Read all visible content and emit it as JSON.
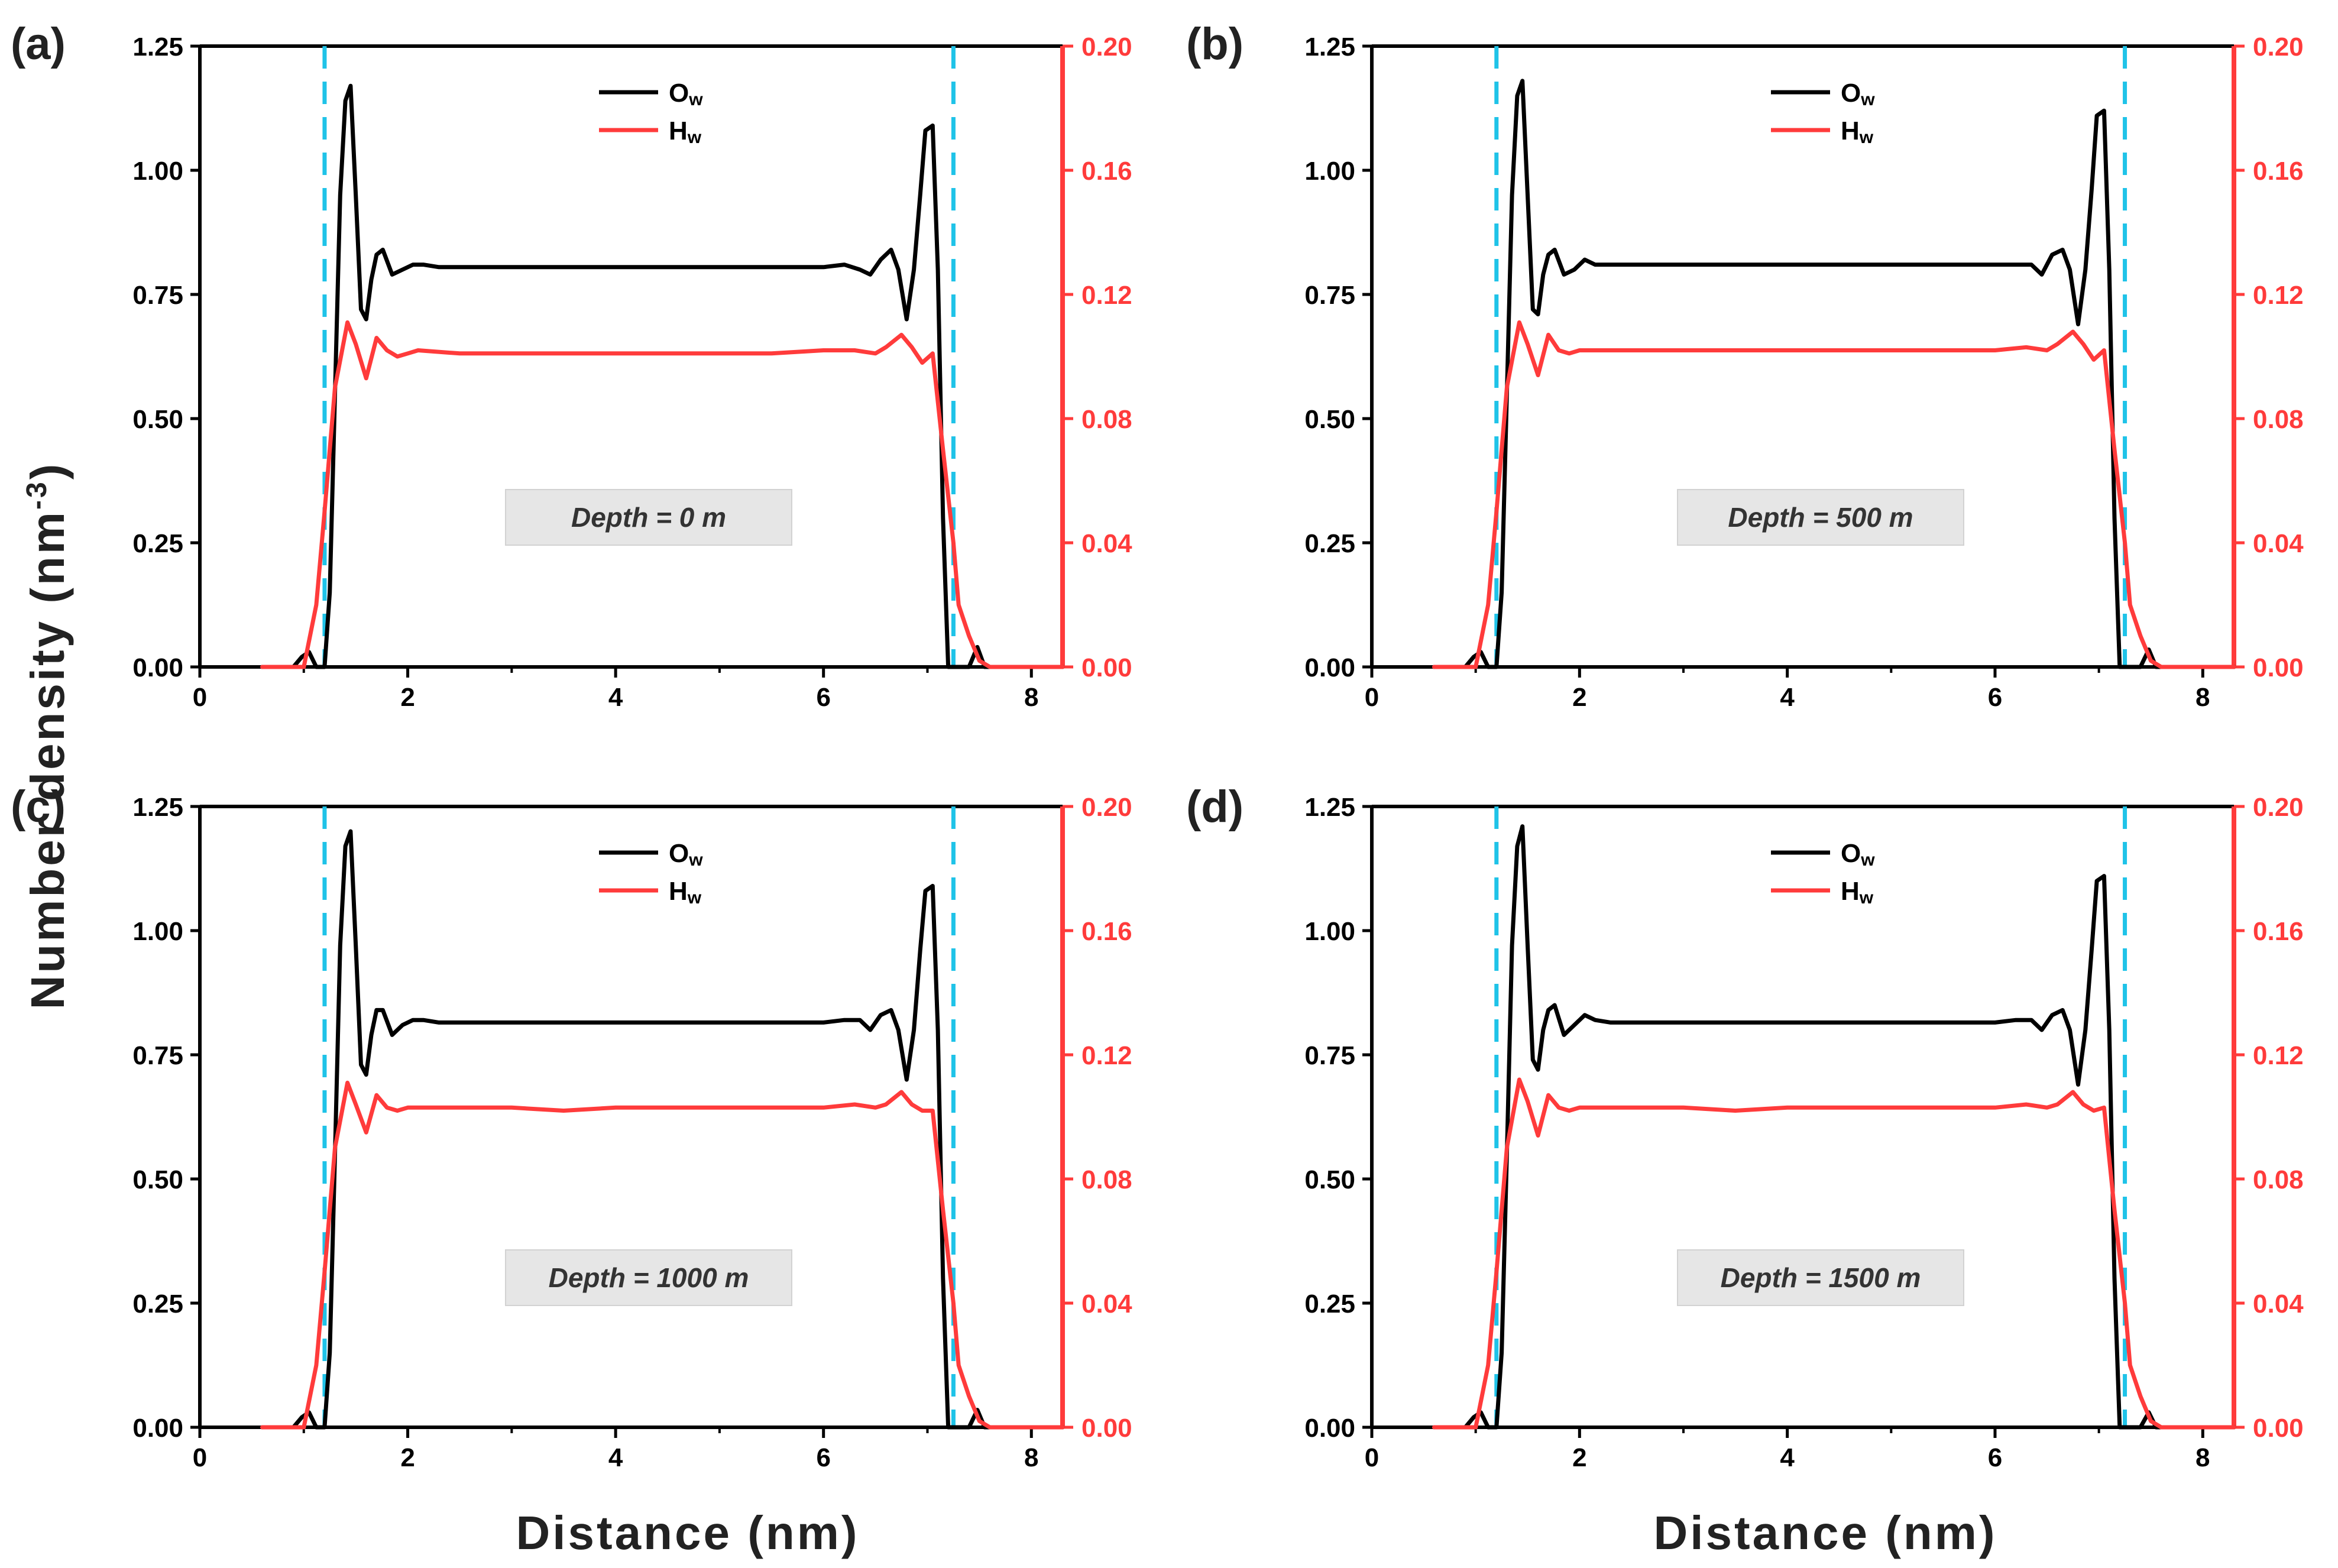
{
  "colors": {
    "ow": "#000000",
    "hw": "#ff3b3b",
    "dashed": "#1fc3e8",
    "axis": "#000000",
    "right_axis": "#ff3b3b",
    "depth_box": "#e6e6e6"
  },
  "figure": {
    "xlabel": "Distance (nm)",
    "ylabel_left": "Number density (nm",
    "ylabel_sup": "-3",
    "ylabel_close": ")"
  },
  "chart_data": [
    {
      "type": "line",
      "panel": "(a)",
      "annotation": "Depth = 0 m",
      "xlim": [
        0,
        8.3
      ],
      "ylim_left": [
        0,
        1.25
      ],
      "ylim_right": [
        0,
        0.2
      ],
      "xticks": [
        "0",
        "2",
        "4",
        "6",
        "8"
      ],
      "yticks_left": [
        "0.00",
        "0.25",
        "0.50",
        "0.75",
        "1.00",
        "1.25"
      ],
      "yticks_right": [
        "0.00",
        "0.04",
        "0.08",
        "0.12",
        "0.16",
        "0.20"
      ],
      "interfaces_x": [
        1.2,
        7.25
      ],
      "legend": [
        {
          "main": "O",
          "sub": "w"
        },
        {
          "main": "H",
          "sub": "w"
        }
      ],
      "series": [
        {
          "name": "Ow",
          "axis": "left",
          "x": [
            0.6,
            0.9,
            0.98,
            1.05,
            1.12,
            1.2,
            1.25,
            1.3,
            1.35,
            1.4,
            1.45,
            1.5,
            1.55,
            1.6,
            1.65,
            1.7,
            1.76,
            1.85,
            1.95,
            2.05,
            2.15,
            2.3,
            2.5,
            3.0,
            3.5,
            4.0,
            4.5,
            5.0,
            5.5,
            6.0,
            6.2,
            6.35,
            6.45,
            6.55,
            6.65,
            6.72,
            6.8,
            6.87,
            6.93,
            6.98,
            7.05,
            7.1,
            7.15,
            7.2,
            7.25,
            7.3,
            7.4,
            7.48,
            7.55,
            7.7,
            8.3
          ],
          "y": [
            0,
            0,
            0.02,
            0.03,
            0,
            0,
            0.15,
            0.55,
            0.95,
            1.14,
            1.17,
            0.95,
            0.72,
            0.7,
            0.78,
            0.83,
            0.84,
            0.79,
            0.8,
            0.81,
            0.81,
            0.805,
            0.805,
            0.805,
            0.805,
            0.805,
            0.805,
            0.805,
            0.805,
            0.805,
            0.81,
            0.8,
            0.79,
            0.82,
            0.84,
            0.8,
            0.7,
            0.8,
            0.95,
            1.08,
            1.09,
            0.8,
            0.3,
            0,
            0,
            0,
            0,
            0.04,
            0,
            0,
            0
          ]
        },
        {
          "name": "Hw",
          "axis": "right",
          "x": [
            0.6,
            1.0,
            1.12,
            1.2,
            1.3,
            1.42,
            1.5,
            1.6,
            1.7,
            1.8,
            1.9,
            2.0,
            2.1,
            2.5,
            3.0,
            3.5,
            4.0,
            4.5,
            5.0,
            5.5,
            6.0,
            6.3,
            6.5,
            6.6,
            6.75,
            6.85,
            6.95,
            7.05,
            7.15,
            7.25,
            7.3,
            7.4,
            7.5,
            7.6,
            8.3
          ],
          "y": [
            0,
            0,
            0.02,
            0.05,
            0.09,
            0.111,
            0.104,
            0.093,
            0.106,
            0.102,
            0.1,
            0.101,
            0.102,
            0.101,
            0.101,
            0.101,
            0.101,
            0.101,
            0.101,
            0.101,
            0.102,
            0.102,
            0.101,
            0.103,
            0.107,
            0.103,
            0.098,
            0.101,
            0.07,
            0.04,
            0.02,
            0.01,
            0.002,
            0,
            0
          ]
        }
      ]
    },
    {
      "type": "line",
      "panel": "(b)",
      "annotation": "Depth = 500 m",
      "xlim": [
        0,
        8.3
      ],
      "ylim_left": [
        0,
        1.25
      ],
      "ylim_right": [
        0,
        0.2
      ],
      "xticks": [
        "0",
        "2",
        "4",
        "6",
        "8"
      ],
      "yticks_left": [
        "0.00",
        "0.25",
        "0.50",
        "0.75",
        "1.00",
        "1.25"
      ],
      "yticks_right": [
        "0.00",
        "0.04",
        "0.08",
        "0.12",
        "0.16",
        "0.20"
      ],
      "interfaces_x": [
        1.2,
        7.25
      ],
      "legend": [
        {
          "main": "O",
          "sub": "w"
        },
        {
          "main": "H",
          "sub": "w"
        }
      ],
      "series": [
        {
          "name": "Ow",
          "axis": "left",
          "x": [
            0.6,
            0.9,
            0.98,
            1.05,
            1.12,
            1.2,
            1.25,
            1.3,
            1.35,
            1.4,
            1.45,
            1.5,
            1.55,
            1.6,
            1.65,
            1.7,
            1.76,
            1.85,
            1.95,
            2.05,
            2.15,
            2.3,
            2.5,
            3.0,
            3.5,
            4.0,
            4.5,
            5.0,
            5.5,
            6.0,
            6.2,
            6.35,
            6.45,
            6.55,
            6.65,
            6.72,
            6.8,
            6.87,
            6.93,
            6.98,
            7.05,
            7.1,
            7.15,
            7.2,
            7.25,
            7.3,
            7.4,
            7.48,
            7.55,
            7.7,
            8.3
          ],
          "y": [
            0,
            0,
            0.02,
            0.03,
            0,
            0,
            0.15,
            0.55,
            0.95,
            1.15,
            1.18,
            0.95,
            0.72,
            0.71,
            0.79,
            0.83,
            0.84,
            0.79,
            0.8,
            0.82,
            0.81,
            0.81,
            0.81,
            0.81,
            0.81,
            0.81,
            0.81,
            0.81,
            0.81,
            0.81,
            0.81,
            0.81,
            0.79,
            0.83,
            0.84,
            0.8,
            0.69,
            0.8,
            0.96,
            1.11,
            1.12,
            0.8,
            0.3,
            0,
            0,
            0,
            0,
            0.035,
            0,
            0,
            0
          ]
        },
        {
          "name": "Hw",
          "axis": "right",
          "x": [
            0.6,
            1.0,
            1.12,
            1.2,
            1.3,
            1.42,
            1.5,
            1.6,
            1.7,
            1.8,
            1.9,
            2.0,
            2.1,
            2.5,
            3.0,
            3.5,
            4.0,
            4.5,
            5.0,
            5.5,
            6.0,
            6.3,
            6.5,
            6.6,
            6.75,
            6.85,
            6.95,
            7.05,
            7.15,
            7.25,
            7.3,
            7.4,
            7.5,
            7.6,
            8.3
          ],
          "y": [
            0,
            0,
            0.02,
            0.05,
            0.09,
            0.111,
            0.104,
            0.094,
            0.107,
            0.102,
            0.101,
            0.102,
            0.102,
            0.102,
            0.102,
            0.102,
            0.102,
            0.102,
            0.102,
            0.102,
            0.102,
            0.103,
            0.102,
            0.104,
            0.108,
            0.104,
            0.099,
            0.102,
            0.07,
            0.04,
            0.02,
            0.01,
            0.002,
            0,
            0
          ]
        }
      ]
    },
    {
      "type": "line",
      "panel": "(c)",
      "annotation": "Depth = 1000 m",
      "xlim": [
        0,
        8.3
      ],
      "ylim_left": [
        0,
        1.25
      ],
      "ylim_right": [
        0,
        0.2
      ],
      "xticks": [
        "0",
        "2",
        "4",
        "6",
        "8"
      ],
      "yticks_left": [
        "0.00",
        "0.25",
        "0.50",
        "0.75",
        "1.00",
        "1.25"
      ],
      "yticks_right": [
        "0.00",
        "0.04",
        "0.08",
        "0.12",
        "0.16",
        "0.20"
      ],
      "interfaces_x": [
        1.2,
        7.25
      ],
      "legend": [
        {
          "main": "O",
          "sub": "w"
        },
        {
          "main": "H",
          "sub": "w"
        }
      ],
      "series": [
        {
          "name": "Ow",
          "axis": "left",
          "x": [
            0.6,
            0.9,
            0.98,
            1.05,
            1.12,
            1.2,
            1.25,
            1.3,
            1.35,
            1.4,
            1.45,
            1.5,
            1.55,
            1.6,
            1.65,
            1.7,
            1.76,
            1.85,
            1.95,
            2.05,
            2.15,
            2.3,
            2.5,
            3.0,
            3.5,
            4.0,
            4.5,
            5.0,
            5.5,
            6.0,
            6.2,
            6.35,
            6.45,
            6.55,
            6.65,
            6.72,
            6.8,
            6.87,
            6.93,
            6.98,
            7.05,
            7.1,
            7.15,
            7.2,
            7.25,
            7.3,
            7.4,
            7.48,
            7.55,
            7.7,
            8.3
          ],
          "y": [
            0,
            0,
            0.02,
            0.03,
            0,
            0,
            0.15,
            0.55,
            0.97,
            1.17,
            1.2,
            0.97,
            0.73,
            0.71,
            0.79,
            0.84,
            0.84,
            0.79,
            0.81,
            0.82,
            0.82,
            0.815,
            0.815,
            0.815,
            0.815,
            0.815,
            0.815,
            0.815,
            0.815,
            0.815,
            0.82,
            0.82,
            0.8,
            0.83,
            0.84,
            0.8,
            0.7,
            0.8,
            0.96,
            1.08,
            1.09,
            0.8,
            0.3,
            0,
            0,
            0,
            0,
            0.035,
            0,
            0,
            0
          ]
        },
        {
          "name": "Hw",
          "axis": "right",
          "x": [
            0.6,
            1.0,
            1.12,
            1.2,
            1.3,
            1.42,
            1.5,
            1.6,
            1.7,
            1.8,
            1.9,
            2.0,
            2.1,
            2.5,
            3.0,
            3.5,
            4.0,
            4.5,
            5.0,
            5.5,
            6.0,
            6.3,
            6.5,
            6.6,
            6.75,
            6.85,
            6.95,
            7.05,
            7.15,
            7.25,
            7.3,
            7.4,
            7.5,
            7.6,
            8.3
          ],
          "y": [
            0,
            0,
            0.02,
            0.05,
            0.09,
            0.111,
            0.104,
            0.095,
            0.107,
            0.103,
            0.102,
            0.103,
            0.103,
            0.103,
            0.103,
            0.102,
            0.103,
            0.103,
            0.103,
            0.103,
            0.103,
            0.104,
            0.103,
            0.104,
            0.108,
            0.104,
            0.102,
            0.102,
            0.07,
            0.04,
            0.02,
            0.01,
            0.002,
            0,
            0
          ]
        }
      ]
    },
    {
      "type": "line",
      "panel": "(d)",
      "annotation": "Depth = 1500 m",
      "xlim": [
        0,
        8.3
      ],
      "ylim_left": [
        0,
        1.25
      ],
      "ylim_right": [
        0,
        0.2
      ],
      "xticks": [
        "0",
        "2",
        "4",
        "6",
        "8"
      ],
      "yticks_left": [
        "0.00",
        "0.25",
        "0.50",
        "0.75",
        "1.00",
        "1.25"
      ],
      "yticks_right": [
        "0.00",
        "0.04",
        "0.08",
        "0.12",
        "0.16",
        "0.20"
      ],
      "interfaces_x": [
        1.2,
        7.25
      ],
      "legend": [
        {
          "main": "O",
          "sub": "w"
        },
        {
          "main": "H",
          "sub": "w"
        }
      ],
      "series": [
        {
          "name": "Ow",
          "axis": "left",
          "x": [
            0.6,
            0.9,
            0.98,
            1.05,
            1.12,
            1.2,
            1.25,
            1.3,
            1.35,
            1.4,
            1.45,
            1.5,
            1.55,
            1.6,
            1.65,
            1.7,
            1.76,
            1.85,
            1.95,
            2.05,
            2.15,
            2.3,
            2.5,
            3.0,
            3.5,
            4.0,
            4.5,
            5.0,
            5.5,
            6.0,
            6.2,
            6.35,
            6.45,
            6.55,
            6.65,
            6.72,
            6.8,
            6.87,
            6.93,
            6.98,
            7.05,
            7.1,
            7.15,
            7.2,
            7.25,
            7.3,
            7.4,
            7.48,
            7.55,
            7.7,
            8.3
          ],
          "y": [
            0,
            0,
            0.02,
            0.03,
            0,
            0,
            0.15,
            0.55,
            0.97,
            1.17,
            1.21,
            0.97,
            0.74,
            0.72,
            0.8,
            0.84,
            0.85,
            0.79,
            0.81,
            0.83,
            0.82,
            0.815,
            0.815,
            0.815,
            0.815,
            0.815,
            0.815,
            0.815,
            0.815,
            0.815,
            0.82,
            0.82,
            0.8,
            0.83,
            0.84,
            0.8,
            0.69,
            0.8,
            0.96,
            1.1,
            1.11,
            0.8,
            0.3,
            0,
            0,
            0,
            0,
            0.03,
            0,
            0,
            0
          ]
        },
        {
          "name": "Hw",
          "axis": "right",
          "x": [
            0.6,
            1.0,
            1.12,
            1.2,
            1.3,
            1.42,
            1.5,
            1.6,
            1.7,
            1.8,
            1.9,
            2.0,
            2.1,
            2.5,
            3.0,
            3.5,
            4.0,
            4.5,
            5.0,
            5.5,
            6.0,
            6.3,
            6.5,
            6.6,
            6.75,
            6.85,
            6.95,
            7.05,
            7.15,
            7.25,
            7.3,
            7.4,
            7.5,
            7.6,
            8.3
          ],
          "y": [
            0,
            0,
            0.02,
            0.05,
            0.09,
            0.112,
            0.105,
            0.094,
            0.107,
            0.103,
            0.102,
            0.103,
            0.103,
            0.103,
            0.103,
            0.102,
            0.103,
            0.103,
            0.103,
            0.103,
            0.103,
            0.104,
            0.103,
            0.104,
            0.108,
            0.104,
            0.102,
            0.103,
            0.07,
            0.04,
            0.02,
            0.01,
            0.002,
            0,
            0
          ]
        }
      ]
    }
  ]
}
